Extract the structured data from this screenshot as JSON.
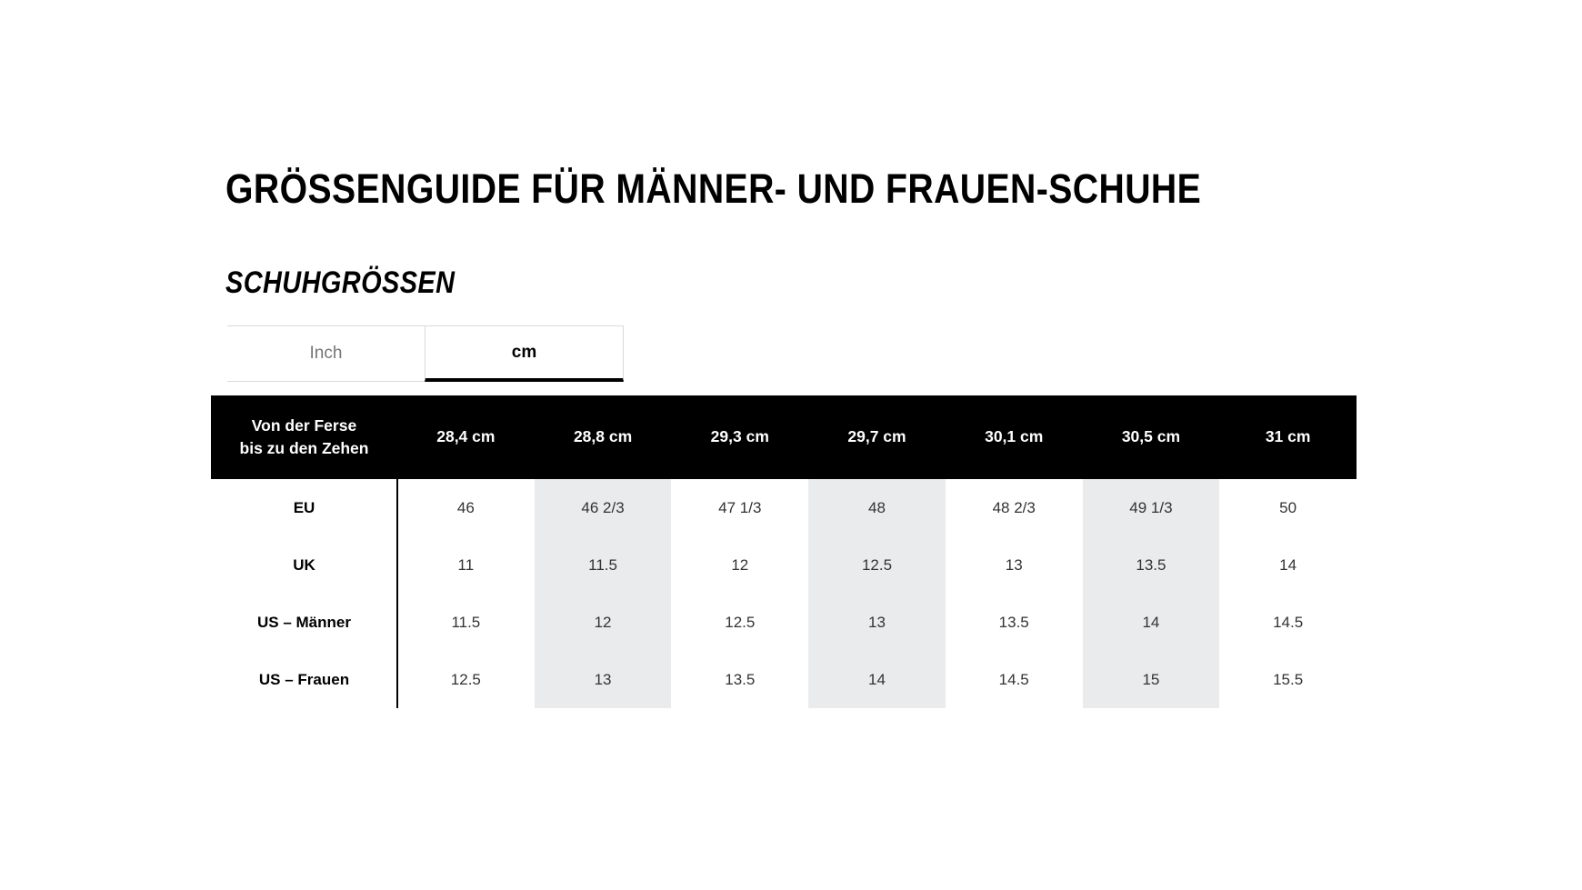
{
  "page": {
    "title": "GRÖSSENGUIDE FÜR MÄNNER- UND FRAUEN-SCHUHE",
    "subtitle": "SCHUHGRÖSSEN"
  },
  "tabs": [
    {
      "label": "Inch",
      "active": false
    },
    {
      "label": "cm",
      "active": true
    }
  ],
  "table": {
    "corner_label_line1": "Von der Ferse",
    "corner_label_line2": "bis zu den Zehen",
    "columns": [
      "28,4 cm",
      "28,8 cm",
      "29,3 cm",
      "29,7 cm",
      "30,1 cm",
      "30,5 cm",
      "31 cm"
    ],
    "rows": [
      {
        "label": "EU",
        "values": [
          "46",
          "46 2/3",
          "47 1/3",
          "48",
          "48 2/3",
          "49 1/3",
          "50"
        ]
      },
      {
        "label": "UK",
        "values": [
          "11",
          "11.5",
          "12",
          "12.5",
          "13",
          "13.5",
          "14"
        ]
      },
      {
        "label": "US – Männer",
        "values": [
          "11.5",
          "12",
          "12.5",
          "13",
          "13.5",
          "14",
          "14.5"
        ]
      },
      {
        "label": "US – Frauen",
        "values": [
          "12.5",
          "13",
          "13.5",
          "14",
          "14.5",
          "15",
          "15.5"
        ]
      }
    ],
    "shaded_columns": [
      1,
      3,
      5
    ]
  },
  "colors": {
    "header_bg": "#000000",
    "header_text": "#ffffff",
    "shade": "#e9ebec",
    "tab_inactive_text": "#767677",
    "tab_border": "#d9d9d9",
    "active_underline": "#000000",
    "value_text": "#333333"
  }
}
